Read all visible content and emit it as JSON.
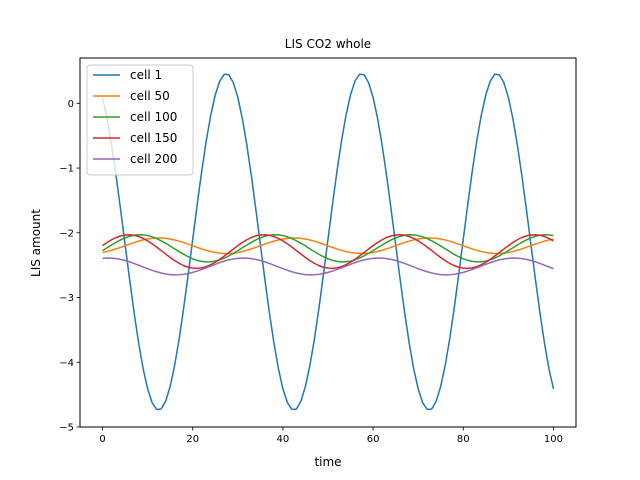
{
  "chart_data": {
    "type": "line",
    "title": "LIS CO2 whole",
    "xlabel": "time",
    "ylabel": "LIS amount",
    "xlim": [
      -5,
      105
    ],
    "ylim": [
      -5.0,
      0.7
    ],
    "xticks": [
      0,
      20,
      40,
      60,
      80,
      100
    ],
    "yticks": [
      0,
      -1,
      -2,
      -3,
      -4,
      -5
    ],
    "ytick_labels": [
      "0",
      "−1",
      "−2",
      "−3",
      "−4",
      "−5"
    ],
    "grid": false,
    "legend_position": "upper left",
    "series": [
      {
        "name": "cell 1",
        "color": "#1f77b4",
        "mean": -2.14,
        "amplitude": 2.6,
        "phase": 2.11
      },
      {
        "name": "cell 50",
        "color": "#ff7f0e",
        "mean": -2.2,
        "amplitude": 0.12,
        "phase": 5.24
      },
      {
        "name": "cell 100",
        "color": "#2ca02c",
        "mean": -2.24,
        "amplitude": 0.21,
        "phase": -0.17
      },
      {
        "name": "cell 150",
        "color": "#d62728",
        "mean": -2.29,
        "amplitude": 0.26,
        "phase": 0.36
      },
      {
        "name": "cell 200",
        "color": "#9467bd",
        "mean": -2.52,
        "amplitude": 0.13,
        "phase": 1.31
      }
    ],
    "period": 30,
    "x": [
      0,
      1,
      2,
      3,
      4,
      5,
      6,
      7,
      8,
      9,
      10,
      11,
      12,
      13,
      14,
      15,
      16,
      17,
      18,
      19,
      20,
      21,
      22,
      23,
      24,
      25,
      26,
      27,
      28,
      29,
      30,
      31,
      32,
      33,
      34,
      35,
      36,
      37,
      38,
      39,
      40,
      41,
      42,
      43,
      44,
      45,
      46,
      47,
      48,
      49,
      50,
      51,
      52,
      53,
      54,
      55,
      56,
      57,
      58,
      59,
      60,
      61,
      62,
      63,
      64,
      65,
      66,
      67,
      68,
      69,
      70,
      71,
      72,
      73,
      74,
      75,
      76,
      77,
      78,
      79,
      80,
      81,
      82,
      83,
      84,
      85,
      86,
      87,
      88,
      89,
      90,
      91,
      92,
      93,
      94,
      95,
      96,
      97,
      98,
      99,
      100
    ]
  }
}
